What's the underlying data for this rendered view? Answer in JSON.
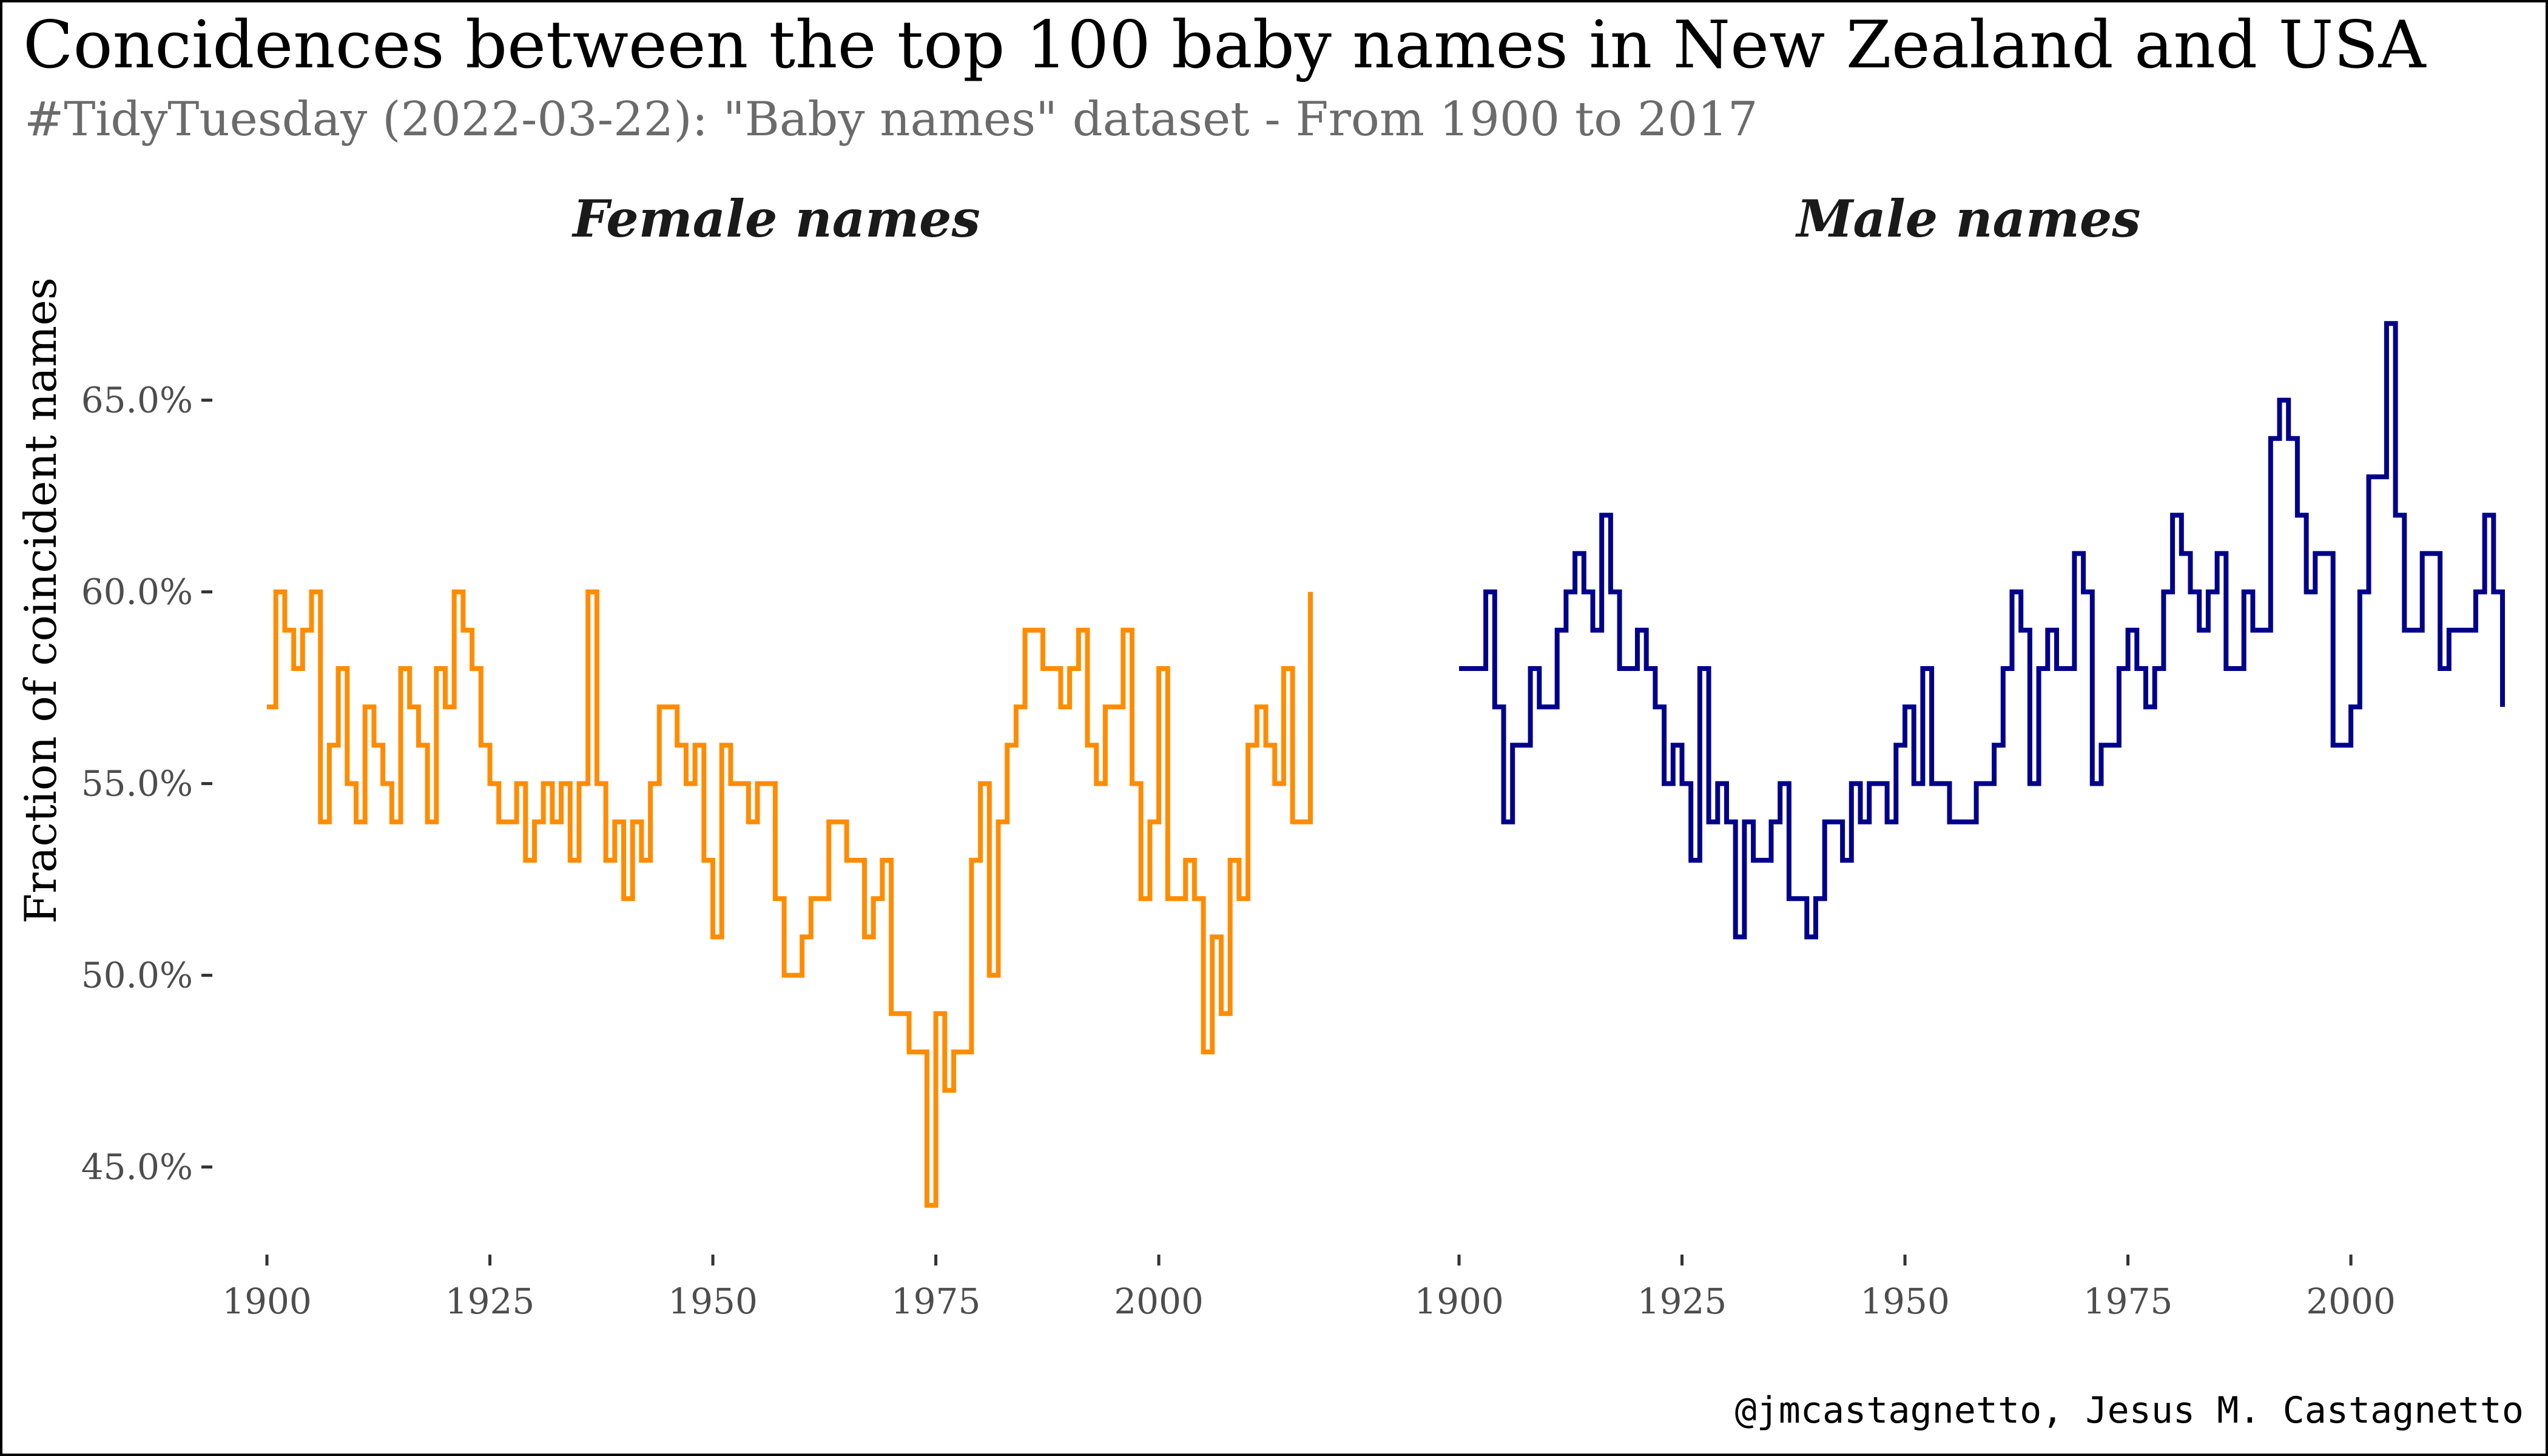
{
  "title": "Concidences between the top 100 baby names in New Zealand and USA",
  "subtitle": "#TidyTuesday (2022-03-22): \"Baby names\" dataset  - From 1900 to 2017",
  "caption": "@jmcastagnetto, Jesus M. Castagnetto",
  "colors": {
    "female": "#FF8C00",
    "male": "#00008B",
    "subtitle": "#6b6b6b"
  },
  "chart_data": {
    "type": "line",
    "step": true,
    "facet_by": "sex",
    "ylabel": "Fraction of coincident names",
    "xlabel": "",
    "ylim": [
      0.43,
      0.68
    ],
    "y_ticks": [
      0.45,
      0.5,
      0.55,
      0.6,
      0.65
    ],
    "y_tick_labels": [
      "45.0%",
      "50.0%",
      "55.0%",
      "60.0%",
      "65.0%"
    ],
    "x_ticks": [
      1900,
      1925,
      1950,
      1975,
      2000
    ],
    "x_tick_labels": [
      "1900",
      "1925",
      "1950",
      "1975",
      "2000"
    ],
    "xlim": [
      1900,
      2017
    ],
    "grid": false,
    "legend": "none",
    "panels": [
      {
        "name": "Female names",
        "color": "#FF8C00",
        "x_start": 1900,
        "values": [
          0.57,
          0.6,
          0.59,
          0.58,
          0.59,
          0.6,
          0.54,
          0.56,
          0.58,
          0.55,
          0.54,
          0.57,
          0.56,
          0.55,
          0.54,
          0.58,
          0.57,
          0.56,
          0.54,
          0.58,
          0.57,
          0.6,
          0.59,
          0.58,
          0.56,
          0.55,
          0.54,
          0.54,
          0.55,
          0.53,
          0.54,
          0.55,
          0.54,
          0.55,
          0.53,
          0.55,
          0.6,
          0.55,
          0.53,
          0.54,
          0.52,
          0.54,
          0.53,
          0.55,
          0.57,
          0.57,
          0.56,
          0.55,
          0.56,
          0.53,
          0.51,
          0.56,
          0.55,
          0.55,
          0.54,
          0.55,
          0.55,
          0.52,
          0.5,
          0.5,
          0.51,
          0.52,
          0.52,
          0.54,
          0.54,
          0.53,
          0.53,
          0.51,
          0.52,
          0.53,
          0.49,
          0.49,
          0.48,
          0.48,
          0.44,
          0.49,
          0.47,
          0.48,
          0.48,
          0.53,
          0.55,
          0.5,
          0.54,
          0.56,
          0.57,
          0.59,
          0.59,
          0.58,
          0.58,
          0.57,
          0.58,
          0.59,
          0.56,
          0.55,
          0.57,
          0.57,
          0.59,
          0.55,
          0.52,
          0.54,
          0.58,
          0.52,
          0.52,
          0.53,
          0.52,
          0.48,
          0.51,
          0.49,
          0.53,
          0.52,
          0.56,
          0.57,
          0.56,
          0.55,
          0.58,
          0.54,
          0.54,
          0.6
        ]
      },
      {
        "name": "Male names",
        "color": "#00008B",
        "x_start": 1900,
        "values": [
          0.58,
          0.58,
          0.58,
          0.6,
          0.57,
          0.54,
          0.56,
          0.56,
          0.58,
          0.57,
          0.57,
          0.59,
          0.6,
          0.61,
          0.6,
          0.59,
          0.62,
          0.6,
          0.58,
          0.58,
          0.59,
          0.58,
          0.57,
          0.55,
          0.56,
          0.55,
          0.53,
          0.58,
          0.54,
          0.55,
          0.54,
          0.51,
          0.54,
          0.53,
          0.53,
          0.54,
          0.55,
          0.52,
          0.52,
          0.51,
          0.52,
          0.54,
          0.54,
          0.53,
          0.55,
          0.54,
          0.55,
          0.55,
          0.54,
          0.56,
          0.57,
          0.55,
          0.58,
          0.55,
          0.55,
          0.54,
          0.54,
          0.54,
          0.55,
          0.55,
          0.56,
          0.58,
          0.6,
          0.59,
          0.55,
          0.58,
          0.59,
          0.58,
          0.58,
          0.61,
          0.6,
          0.55,
          0.56,
          0.56,
          0.58,
          0.59,
          0.58,
          0.57,
          0.58,
          0.6,
          0.62,
          0.61,
          0.6,
          0.59,
          0.6,
          0.61,
          0.58,
          0.58,
          0.6,
          0.59,
          0.59,
          0.64,
          0.65,
          0.64,
          0.62,
          0.6,
          0.61,
          0.61,
          0.56,
          0.56,
          0.57,
          0.6,
          0.63,
          0.63,
          0.67,
          0.62,
          0.59,
          0.59,
          0.61,
          0.61,
          0.58,
          0.59,
          0.59,
          0.59,
          0.6,
          0.62,
          0.6,
          0.57
        ]
      }
    ]
  }
}
